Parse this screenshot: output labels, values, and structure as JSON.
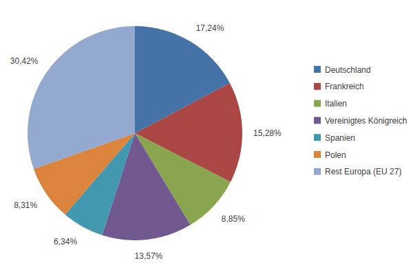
{
  "chart_data": {
    "type": "pie",
    "categories": [
      "Deutschland",
      "Frankreich",
      "Italien",
      "Vereinigtes Königreich",
      "Spanien",
      "Polen",
      "Rest Europa (EU 27)"
    ],
    "values": [
      17.24,
      15.28,
      8.85,
      13.57,
      6.34,
      8.31,
      30.42
    ],
    "value_labels": [
      "17,24%",
      "15,28%",
      "8,85%",
      "13,57%",
      "6,34%",
      "8,31%",
      "30,42%"
    ],
    "colors": [
      "#4572a7",
      "#aa4643",
      "#89a54e",
      "#71588f",
      "#4198af",
      "#db843d",
      "#93a9cf"
    ],
    "data_labels": true,
    "legend": "right"
  }
}
